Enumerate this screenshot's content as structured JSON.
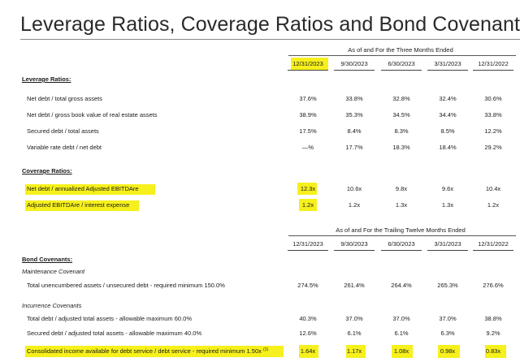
{
  "title": "Leverage Ratios, Coverage Ratios and Bond Covenants",
  "table1": {
    "period_header": "As of and For the Three Months Ended",
    "columns": [
      "12/31/2023",
      "9/30/2023",
      "6/30/2023",
      "3/31/2023",
      "12/31/2022"
    ],
    "leverage_heading": "Leverage Ratios:",
    "leverage_rows": [
      {
        "label": "Net debt / total gross assets",
        "values": [
          "37.6%",
          "33.8%",
          "32.8%",
          "32.4%",
          "30.6%"
        ]
      },
      {
        "label": "Net debt / gross book value of real estate assets",
        "values": [
          "38.9%",
          "35.3%",
          "34.5%",
          "34.4%",
          "33.8%"
        ]
      },
      {
        "label": "Secured debt / total assets",
        "values": [
          "17.5%",
          "8.4%",
          "8.3%",
          "8.5%",
          "12.2%"
        ]
      },
      {
        "label": "Variable rate debt / net debt",
        "values": [
          "—%",
          "17.7%",
          "18.3%",
          "18.4%",
          "29.2%"
        ]
      }
    ],
    "coverage_heading": "Coverage Ratios:",
    "coverage_rows": [
      {
        "label": "Net debt / annualized Adjusted EBITDAre",
        "values": [
          "12.3x",
          "10.6x",
          "9.8x",
          "9.6x",
          "10.4x"
        ]
      },
      {
        "label": "Adjusted EBITDAre / interest expense",
        "values": [
          "1.2x",
          "1.2x",
          "1.3x",
          "1.3x",
          "1.2x"
        ]
      }
    ]
  },
  "table2": {
    "period_header": "As of and For the Trailing Twelve Months Ended",
    "columns": [
      "12/31/2023",
      "9/30/2023",
      "6/30/2023",
      "3/31/2023",
      "12/31/2022"
    ],
    "heading": "Bond Covenants:",
    "maintenance_label": "Maintenance Covenant",
    "maintenance_rows": [
      {
        "label": "Total unencumbered assets / unsecured debt - required minimum 150.0%",
        "values": [
          "274.5%",
          "261.4%",
          "264.4%",
          "265.3%",
          "276.6%"
        ]
      }
    ],
    "incurrence_label": "Incurrence Covenants",
    "incurrence_rows": [
      {
        "label": "Total debt / adjusted total assets - allowable maximum 60.0%",
        "values": [
          "40.3%",
          "37.0%",
          "37.0%",
          "37.0%",
          "38.8%"
        ]
      },
      {
        "label": "Secured debt / adjusted total assets - allowable maximum 40.0%",
        "values": [
          "12.6%",
          "6.1%",
          "6.1%",
          "6.3%",
          "9.2%"
        ]
      },
      {
        "label": "Consolidated income available for debt service / debt service - required minimum 1.50x",
        "footnote": "(1)",
        "values": [
          "1.64x",
          "1.17x",
          "1.08x",
          "0.98x",
          "0.83x"
        ]
      }
    ]
  },
  "colors": {
    "highlight": "#f6f01c",
    "text": "#1a1a1a",
    "rule": "#555555"
  }
}
